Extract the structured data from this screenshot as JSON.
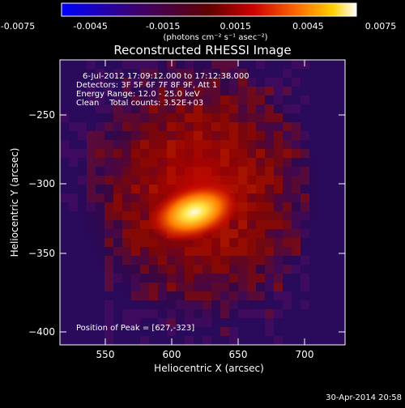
{
  "colorbar": {
    "ticks": [
      "-0.0075",
      "-0.0045",
      "-0.0015",
      "0.0015",
      "0.0045",
      "0.0075"
    ],
    "unit_label": "(photons cm⁻² s⁻¹ asec⁻²)"
  },
  "title": "Reconstructed RHESSI Image",
  "info": [
    "6-Jul-2012 17:09:12.000 to 17:12:38.000",
    "Detectors: 3F 5F 6F 7F 8F 9F, Att 1",
    "Energy Range: 12.0 - 25.0 keV",
    "Clean    Total counts: 3.52E+03"
  ],
  "peak_text": "Position of Peak = [627,-323]",
  "axes": {
    "xlabel": "Heliocentric X (arcsec)",
    "ylabel": "Heliocentric Y (arcsec)",
    "xticks": [
      "550",
      "600",
      "650",
      "700"
    ],
    "yticks": [
      "−250",
      "−300",
      "−350",
      "−400"
    ]
  },
  "footer_date": "30-Apr-2014 20:58",
  "colors": {
    "background": "#000000",
    "axis": "#ffffff",
    "colormap": [
      "#0000ff",
      "#4b0082",
      "#800000",
      "#ff0000",
      "#ff8c00",
      "#ffd700",
      "#ffffff"
    ]
  }
}
